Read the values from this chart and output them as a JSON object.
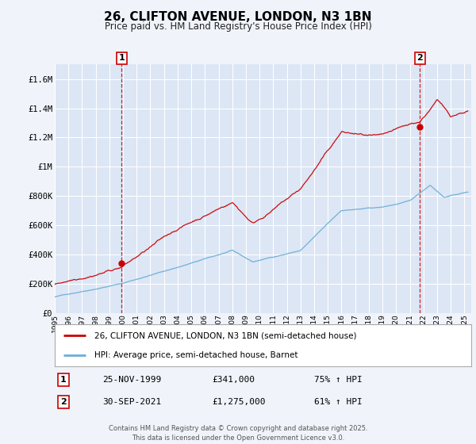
{
  "title": "26, CLIFTON AVENUE, LONDON, N3 1BN",
  "subtitle": "Price paid vs. HM Land Registry's House Price Index (HPI)",
  "title_fontsize": 11,
  "subtitle_fontsize": 8.5,
  "background_color": "#f0f4fa",
  "plot_bg_color": "#dce6f5",
  "grid_color": "#ffffff",
  "ylim": [
    0,
    1700000
  ],
  "yticks": [
    0,
    200000,
    400000,
    600000,
    800000,
    1000000,
    1200000,
    1400000,
    1600000
  ],
  "ytick_labels": [
    "£0",
    "£200K",
    "£400K",
    "£600K",
    "£800K",
    "£1M",
    "£1.2M",
    "£1.4M",
    "£1.6M"
  ],
  "xlim_start": 1995.0,
  "xlim_end": 2025.5,
  "hpi_color": "#6baed6",
  "price_color": "#cc0000",
  "marker1_date": 1999.9,
  "marker1_price": 341000,
  "marker2_date": 2021.75,
  "marker2_price": 1275000,
  "legend_label_price": "26, CLIFTON AVENUE, LONDON, N3 1BN (semi-detached house)",
  "legend_label_hpi": "HPI: Average price, semi-detached house, Barnet",
  "annotation1_label": "1",
  "annotation2_label": "2",
  "table_row1": [
    "1",
    "25-NOV-1999",
    "£341,000",
    "75% ↑ HPI"
  ],
  "table_row2": [
    "2",
    "30-SEP-2021",
    "£1,275,000",
    "61% ↑ HPI"
  ],
  "footer": "Contains HM Land Registry data © Crown copyright and database right 2025.\nThis data is licensed under the Open Government Licence v3.0."
}
